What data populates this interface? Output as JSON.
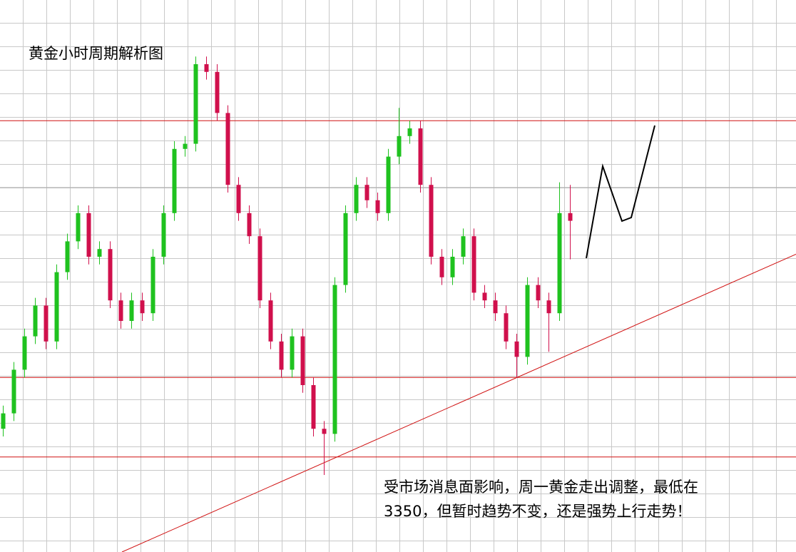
{
  "chart_data": {
    "type": "candlestick",
    "title": "黄金小时周期解析图",
    "annotation": [
      "受市场消息面影响，周一黄金走出调整，最低在",
      "3350，但暂时趋势不变，还是强势上行走势！"
    ],
    "up_color": "#1fc21f",
    "down_color": "#d0104c",
    "xlim": [
      -0.3,
      74.1
    ],
    "ylim": [
      3282,
      3497
    ],
    "open": [
      3330,
      3336,
      3353,
      3366,
      3378,
      3364,
      3391,
      3403,
      3414,
      3397,
      3400,
      3380,
      3372,
      3380,
      3375,
      3397,
      3414,
      3439,
      3441,
      3472,
      3469,
      3453,
      3425,
      3414,
      3405,
      3380,
      3364,
      3353,
      3366,
      3347,
      3330,
      3328,
      3386,
      3414,
      3425,
      3419,
      3414,
      3436,
      3444,
      3447,
      3425,
      3397,
      3389,
      3397,
      3405,
      3383,
      3380,
      3375,
      3364,
      3358,
      3386,
      3380,
      3375,
      3414
    ],
    "close": [
      3336,
      3353,
      3366,
      3378,
      3364,
      3391,
      3403,
      3414,
      3397,
      3400,
      3380,
      3372,
      3380,
      3375,
      3397,
      3414,
      3439,
      3441,
      3472,
      3469,
      3453,
      3425,
      3414,
      3405,
      3380,
      3364,
      3353,
      3366,
      3347,
      3330,
      3328,
      3386,
      3414,
      3425,
      3419,
      3414,
      3436,
      3444,
      3447,
      3425,
      3397,
      3389,
      3397,
      3405,
      3383,
      3380,
      3375,
      3364,
      3358,
      3386,
      3380,
      3375,
      3414,
      3411
    ],
    "high": [
      3339,
      3356,
      3369,
      3381,
      3381,
      3394,
      3406,
      3417,
      3417,
      3403,
      3403,
      3383,
      3383,
      3383,
      3400,
      3417,
      3442,
      3444,
      3475,
      3475,
      3472,
      3456,
      3428,
      3417,
      3408,
      3383,
      3367,
      3369,
      3369,
      3350,
      3333,
      3389,
      3417,
      3428,
      3428,
      3422,
      3439,
      3455,
      3450,
      3450,
      3428,
      3400,
      3400,
      3408,
      3408,
      3386,
      3383,
      3378,
      3367,
      3389,
      3389,
      3383,
      3426,
      3425
    ],
    "low": [
      3327,
      3333,
      3350,
      3363,
      3361,
      3361,
      3388,
      3400,
      3394,
      3394,
      3377,
      3369,
      3369,
      3372,
      3372,
      3394,
      3411,
      3436,
      3438,
      3466,
      3450,
      3422,
      3411,
      3402,
      3377,
      3361,
      3350,
      3350,
      3344,
      3327,
      3312,
      3325,
      3383,
      3411,
      3416,
      3411,
      3411,
      3433,
      3441,
      3422,
      3394,
      3386,
      3386,
      3394,
      3380,
      3377,
      3372,
      3361,
      3350,
      3355,
      3377,
      3360,
      3372,
      3396
    ],
    "levels": [
      3450,
      3350,
      3319
    ],
    "trendline": {
      "x": [
        11.1,
        74.1
      ],
      "y": [
        3282,
        3398
      ]
    }
  }
}
